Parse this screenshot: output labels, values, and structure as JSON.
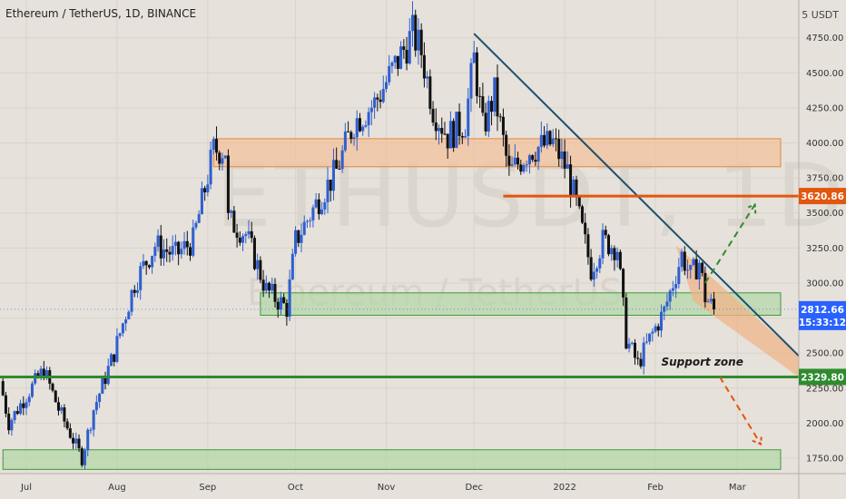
{
  "header": {
    "symbol_title": "Ethereum / TetherUS, 1D, BINANCE",
    "currency": "5 USDT"
  },
  "watermark": {
    "ticker": "ETHUSDT, 1D",
    "name": "Ethereum / TetherUS"
  },
  "chart_data": {
    "type": "candlestick",
    "title": "Ethereum / TetherUS, 1D, BINANCE",
    "x_labels": [
      "Jul",
      "Aug",
      "Sep",
      "Oct",
      "Nov",
      "Dec",
      "2022",
      "Feb",
      "Mar"
    ],
    "x_range": [
      "2021-06-22",
      "2022-03-22"
    ],
    "y_ticks": [
      1750,
      2000,
      2250,
      2500,
      2750,
      3000,
      3250,
      3500,
      3750,
      4000,
      4250,
      4500,
      4750
    ],
    "y_tick_labels": [
      "1750.00",
      "2000.00",
      "2250.00",
      "2500.00",
      "2750.00",
      "3000.00",
      "3250.00",
      "3500.00",
      "3750.00",
      "4000.00",
      "4250.00",
      "4500.00",
      "4750.00"
    ],
    "ylim": [
      1640,
      5020
    ],
    "grid": true,
    "price_path": [
      [
        "2021-06-22",
        2300
      ],
      [
        "2021-06-25",
        2000
      ],
      [
        "2021-07-01",
        2200
      ],
      [
        "2021-07-07",
        2380
      ],
      [
        "2021-07-12",
        2100
      ],
      [
        "2021-07-20",
        1750
      ],
      [
        "2021-07-24",
        2100
      ],
      [
        "2021-07-31",
        2500
      ],
      [
        "2021-08-07",
        3000
      ],
      [
        "2021-08-14",
        3270
      ],
      [
        "2021-08-21",
        3200
      ],
      [
        "2021-08-27",
        3300
      ],
      [
        "2021-09-03",
        3950
      ],
      [
        "2021-09-07",
        3950
      ],
      [
        "2021-09-08",
        3450
      ],
      [
        "2021-09-14",
        3350
      ],
      [
        "2021-09-21",
        2950
      ],
      [
        "2021-09-28",
        2820
      ],
      [
        "2021-10-01",
        3300
      ],
      [
        "2021-10-09",
        3600
      ],
      [
        "2021-10-15",
        3800
      ],
      [
        "2021-10-21",
        4150
      ],
      [
        "2021-10-28",
        4280
      ],
      [
        "2021-11-04",
        4550
      ],
      [
        "2021-11-10",
        4780
      ],
      [
        "2021-11-13",
        4650
      ],
      [
        "2021-11-17",
        4250
      ],
      [
        "2021-11-22",
        4050
      ],
      [
        "2021-11-28",
        4150
      ],
      [
        "2021-12-01",
        4600
      ],
      [
        "2021-12-04",
        4100
      ],
      [
        "2021-12-08",
        4350
      ],
      [
        "2021-12-13",
        3780
      ],
      [
        "2021-12-20",
        3950
      ],
      [
        "2021-12-28",
        4000
      ],
      [
        "2022-01-02",
        3800
      ],
      [
        "2022-01-05",
        3550
      ],
      [
        "2022-01-10",
        3100
      ],
      [
        "2022-01-14",
        3300
      ],
      [
        "2022-01-19",
        3250
      ],
      [
        "2022-01-22",
        2600
      ],
      [
        "2022-01-26",
        2420
      ],
      [
        "2022-01-30",
        2600
      ],
      [
        "2022-02-04",
        2800
      ],
      [
        "2022-02-10",
        3200
      ],
      [
        "2022-02-13",
        3050
      ],
      [
        "2022-02-16",
        3150
      ],
      [
        "2022-02-18",
        2900
      ],
      [
        "2022-02-21",
        2812.66
      ]
    ],
    "zones": [
      {
        "name": "resistance-zone",
        "x": [
          "2021-09-03",
          "2022-03-26"
        ],
        "y": [
          3830,
          4030
        ],
        "fill": "#f3c29c",
        "stroke": "#e0893f"
      },
      {
        "name": "mid-support-zone",
        "x": [
          "2021-09-19",
          "2022-03-26"
        ],
        "y": [
          2770,
          2930
        ],
        "fill": "#b6d7a8",
        "stroke": "#3d9b3d"
      },
      {
        "name": "lower-support-zone",
        "x": [
          "2021-06-23",
          "2022-03-26"
        ],
        "y": [
          1670,
          1810
        ],
        "fill": "#b6d7a8",
        "stroke": "#3d9b3d"
      }
    ],
    "levels": [
      {
        "name": "resistance-level",
        "value": 3620.86,
        "label": "3620.86",
        "x_start": "2021-12-11",
        "color": "#e2560f"
      },
      {
        "name": "support-level",
        "value": 2329.8,
        "label": "2329.80",
        "x_start": "2021-06-22",
        "color": "#2e8b2e"
      }
    ],
    "trendline": {
      "from": [
        "2021-12-01",
        4780
      ],
      "to": [
        "2022-03-22",
        2480
      ],
      "color": "#1e4f6e"
    },
    "triangle": {
      "points": [
        [
          "2022-02-08",
          3270
        ],
        [
          "2022-03-22",
          2480
        ],
        [
          "2022-03-22",
          2329.8
        ],
        [
          "2022-02-14",
          2870
        ]
      ],
      "fill": "#efb48a"
    },
    "projections": [
      {
        "name": "bullish-projection",
        "from": [
          "2022-02-18",
          3000
        ],
        "to": [
          "2022-03-07",
          3560
        ],
        "color": "#2e8b2e"
      },
      {
        "name": "bearish-projection",
        "from": [
          "2022-02-23",
          2329.8
        ],
        "to": [
          "2022-03-09",
          1850
        ],
        "color": "#e2560f"
      }
    ],
    "annotations": [
      {
        "text": "Support zone",
        "at": [
          "2022-02-03",
          2410
        ]
      }
    ],
    "last_price": {
      "value": 2812.66,
      "label": "2812.66",
      "countdown": "15:33:12",
      "color": "#2962ff"
    }
  }
}
